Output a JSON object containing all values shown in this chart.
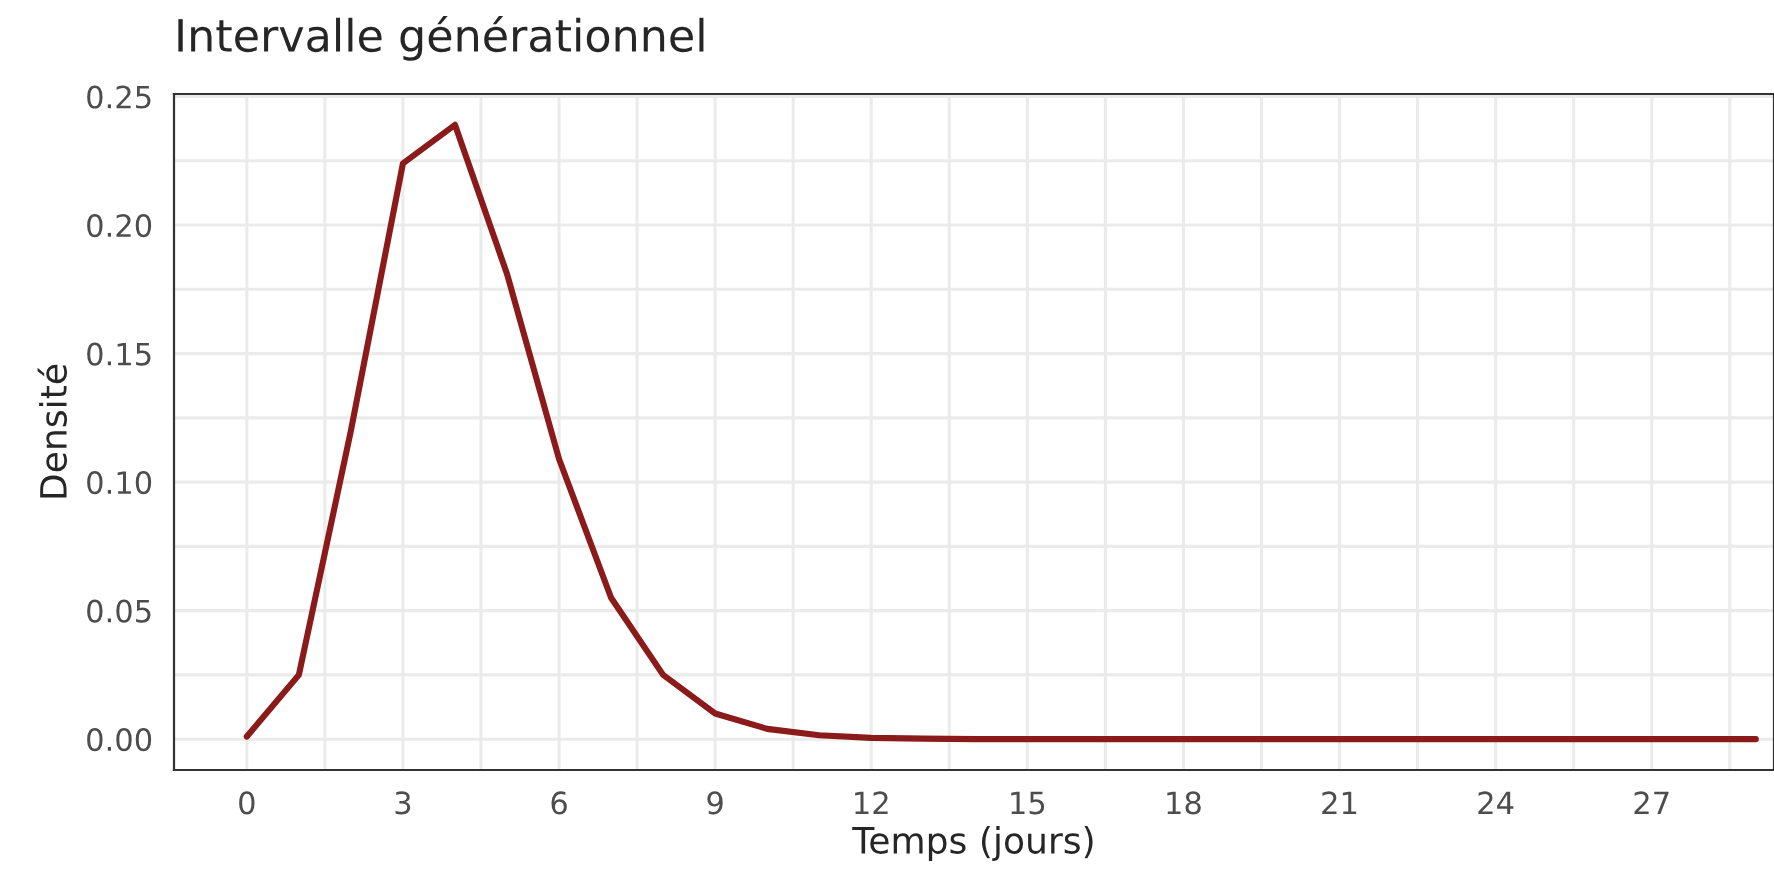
{
  "chart_data": {
    "type": "line",
    "title": "Intervalle générationnel",
    "xlabel": "Temps (jours)",
    "ylabel": "Densité",
    "x": [
      0,
      1,
      2,
      3,
      4,
      5,
      6,
      7,
      8,
      9,
      10,
      11,
      12,
      13,
      14,
      15,
      16,
      17,
      18,
      19,
      20,
      21,
      22,
      23,
      24,
      25,
      26,
      27,
      28,
      29
    ],
    "series": [
      {
        "color": "#8b1a1a",
        "values": [
          0.001,
          0.025,
          0.12,
          0.224,
          0.239,
          0.181,
          0.109,
          0.055,
          0.025,
          0.01,
          0.004,
          0.0015,
          0.0005,
          0.0002,
          0,
          0,
          0,
          0,
          0,
          0,
          0,
          0,
          0,
          0,
          0,
          0,
          0,
          0,
          0,
          0
        ]
      }
    ],
    "xlim": [
      -1.4,
      29.35
    ],
    "ylim": [
      -0.012,
      0.251
    ],
    "xticks": [
      0,
      3,
      6,
      9,
      12,
      15,
      18,
      21,
      24,
      27
    ],
    "yticks": [
      {
        "value": 0,
        "label": "0.00"
      },
      {
        "value": 0.05,
        "label": "0.05"
      },
      {
        "value": 0.1,
        "label": "0.10"
      },
      {
        "value": 0.15,
        "label": "0.15"
      },
      {
        "value": 0.2,
        "label": "0.20"
      },
      {
        "value": 0.25,
        "label": "0.25"
      }
    ],
    "grid": true,
    "line_style": "solid",
    "marker": "none"
  }
}
